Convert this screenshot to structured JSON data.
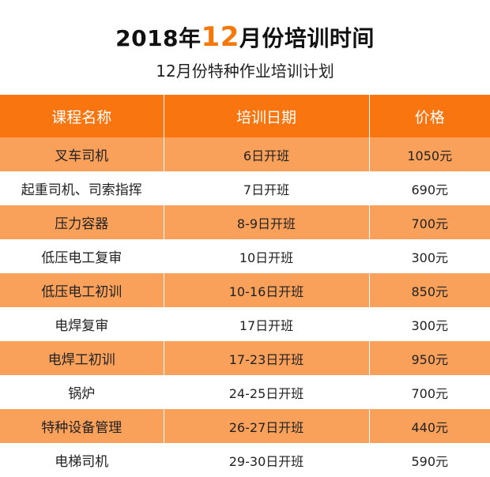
{
  "title": {
    "prefix": "2018年",
    "accent": "12",
    "suffix": "月份培训时间"
  },
  "subtitle": "12月份特种作业培训计划",
  "table": {
    "headers": [
      "课程名称",
      "培训日期",
      "价格"
    ],
    "rows": [
      {
        "course": "叉车司机",
        "date": "6日开班",
        "price": "1050元"
      },
      {
        "course": "起重司机、司索指挥",
        "date": "7日开班",
        "price": "690元"
      },
      {
        "course": "压力容器",
        "date": "8-9日开班",
        "price": "700元"
      },
      {
        "course": "低压电工复审",
        "date": "10日开班",
        "price": "300元"
      },
      {
        "course": "低压电工初训",
        "date": "10-16日开班",
        "price": "850元"
      },
      {
        "course": "电焊复审",
        "date": "17日开班",
        "price": "300元"
      },
      {
        "course": "电焊工初训",
        "date": "17-23日开班",
        "price": "950元"
      },
      {
        "course": "锅炉",
        "date": "24-25日开班",
        "price": "700元"
      },
      {
        "course": "特种设备管理",
        "date": "26-27日开班",
        "price": "440元"
      },
      {
        "course": "电梯司机",
        "date": "29-30日开班",
        "price": "590元"
      }
    ]
  },
  "colors": {
    "accent": "#f4780a",
    "header_bg": "#f8750f",
    "row_highlight": "#f9a05a"
  }
}
